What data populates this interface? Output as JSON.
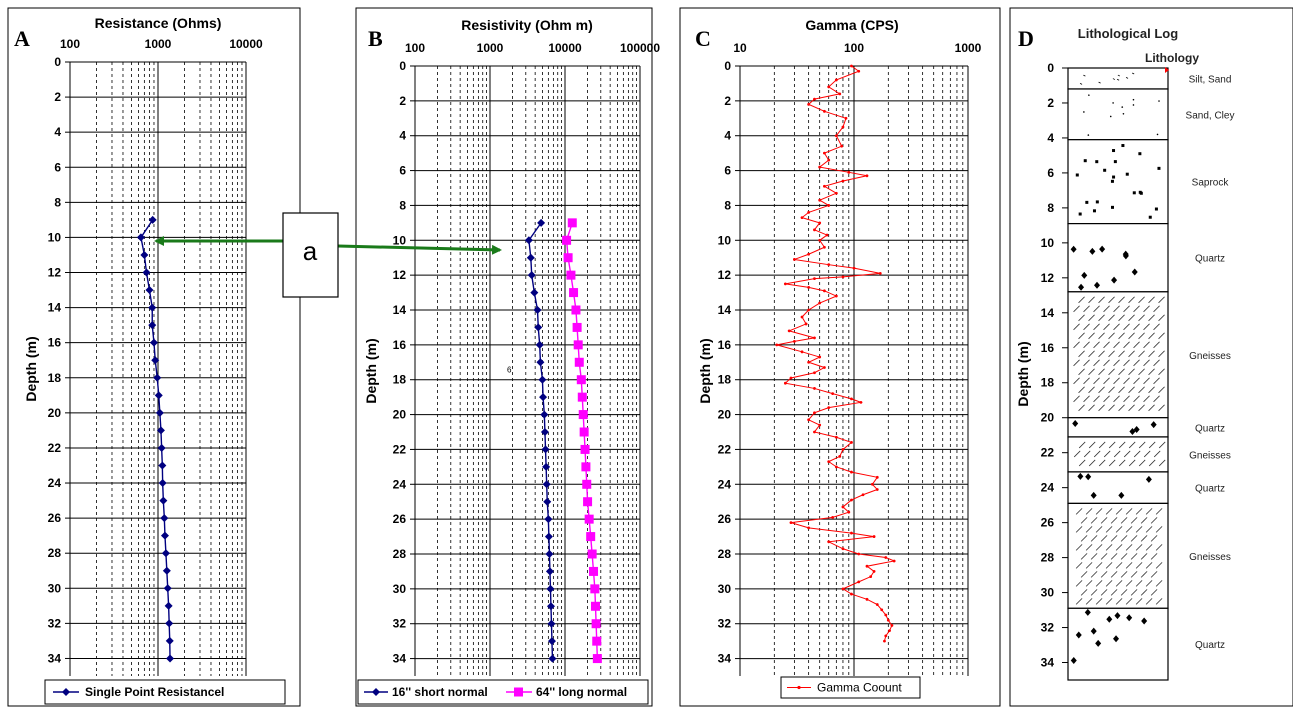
{
  "panels": {
    "A": {
      "letter": "A",
      "title": "Resistance (Ohms)",
      "ylabel": "Depth (m)",
      "x_ticks": [
        "100",
        "1000",
        "10000"
      ],
      "legend": "Single Point Resistancel"
    },
    "B": {
      "letter": "B",
      "title": "Resistivity (Ohm m)",
      "ylabel": "Depth (m)",
      "x_ticks": [
        "100",
        "1000",
        "10000",
        "100000"
      ],
      "legend": [
        "16'' short normal",
        "64'' long normal"
      ],
      "stray_mark": "6"
    },
    "C": {
      "letter": "C",
      "title": "Gamma (CPS)",
      "ylabel": "Depth (m)",
      "x_ticks": [
        "10",
        "100",
        "1000"
      ],
      "legend": "Gamma Coount"
    },
    "D": {
      "letter": "D",
      "title": "Lithological Log",
      "subtitle": "Lithology",
      "ylabel": "Depth (m)"
    }
  },
  "callout": {
    "label": "a"
  },
  "colors": {
    "axis": "#000000",
    "series_short": "#000080",
    "series_long": "#ff00ff",
    "series_gamma": "#ff0000",
    "arrow": "#1a7a1a"
  },
  "chart_data": [
    {
      "type": "line",
      "panel": "A",
      "title": "Resistance (Ohms)",
      "xlabel": "",
      "ylabel": "Depth (m)",
      "x_scale": "log",
      "xlim": [
        100,
        10000
      ],
      "ylim": [
        0,
        35
      ],
      "y_inverted": true,
      "y_ticks": [
        0,
        2,
        4,
        6,
        8,
        10,
        12,
        14,
        16,
        18,
        20,
        22,
        24,
        26,
        28,
        30,
        32,
        34
      ],
      "legend_position": "bottom",
      "series": [
        {
          "name": "Single Point Resistancel",
          "marker": "diamond",
          "points": [
            [
              870,
              9
            ],
            [
              640,
              10
            ],
            [
              700,
              11
            ],
            [
              740,
              12
            ],
            [
              800,
              13
            ],
            [
              860,
              14
            ],
            [
              860,
              15
            ],
            [
              900,
              16
            ],
            [
              930,
              17
            ],
            [
              980,
              18
            ],
            [
              1020,
              19
            ],
            [
              1050,
              20
            ],
            [
              1080,
              21
            ],
            [
              1100,
              22
            ],
            [
              1120,
              23
            ],
            [
              1130,
              24
            ],
            [
              1150,
              25
            ],
            [
              1180,
              26
            ],
            [
              1200,
              27
            ],
            [
              1230,
              28
            ],
            [
              1260,
              29
            ],
            [
              1290,
              30
            ],
            [
              1320,
              31
            ],
            [
              1340,
              32
            ],
            [
              1360,
              33
            ],
            [
              1370,
              34
            ]
          ]
        }
      ]
    },
    {
      "type": "line",
      "panel": "B",
      "title": "Resistivity (Ohm m)",
      "xlabel": "",
      "ylabel": "Depth (m)",
      "x_scale": "log",
      "xlim": [
        100,
        100000
      ],
      "ylim": [
        0,
        35
      ],
      "y_inverted": true,
      "y_ticks": [
        0,
        2,
        4,
        6,
        8,
        10,
        12,
        14,
        16,
        18,
        20,
        22,
        24,
        26,
        28,
        30,
        32,
        34
      ],
      "legend_position": "bottom",
      "series": [
        {
          "name": "16'' short normal",
          "marker": "diamond",
          "points": [
            [
              4800,
              9
            ],
            [
              3300,
              10
            ],
            [
              3500,
              11
            ],
            [
              3600,
              12
            ],
            [
              3900,
              13
            ],
            [
              4300,
              14
            ],
            [
              4400,
              15
            ],
            [
              4600,
              16
            ],
            [
              4700,
              17
            ],
            [
              5000,
              18
            ],
            [
              5100,
              19
            ],
            [
              5300,
              20
            ],
            [
              5400,
              21
            ],
            [
              5500,
              22
            ],
            [
              5600,
              23
            ],
            [
              5700,
              24
            ],
            [
              5800,
              25
            ],
            [
              6000,
              26
            ],
            [
              6100,
              27
            ],
            [
              6200,
              28
            ],
            [
              6300,
              29
            ],
            [
              6400,
              30
            ],
            [
              6500,
              31
            ],
            [
              6600,
              32
            ],
            [
              6700,
              33
            ],
            [
              6800,
              34
            ]
          ]
        },
        {
          "name": "64'' long normal",
          "marker": "square",
          "points": [
            [
              12500,
              9
            ],
            [
              10500,
              10
            ],
            [
              11000,
              11
            ],
            [
              12000,
              12
            ],
            [
              13000,
              13
            ],
            [
              14000,
              14
            ],
            [
              14500,
              15
            ],
            [
              15000,
              16
            ],
            [
              15500,
              17
            ],
            [
              16500,
              18
            ],
            [
              17000,
              19
            ],
            [
              17500,
              20
            ],
            [
              18000,
              21
            ],
            [
              18500,
              22
            ],
            [
              19000,
              23
            ],
            [
              19500,
              24
            ],
            [
              20000,
              25
            ],
            [
              21000,
              26
            ],
            [
              22000,
              27
            ],
            [
              23000,
              28
            ],
            [
              24000,
              29
            ],
            [
              25000,
              30
            ],
            [
              25500,
              31
            ],
            [
              26000,
              32
            ],
            [
              26500,
              33
            ],
            [
              27000,
              34
            ]
          ]
        }
      ]
    },
    {
      "type": "line",
      "panel": "C",
      "title": "Gamma (CPS)",
      "xlabel": "",
      "ylabel": "Depth (m)",
      "x_scale": "log",
      "xlim": [
        10,
        1000
      ],
      "ylim": [
        0,
        35
      ],
      "y_inverted": true,
      "y_ticks": [
        0,
        2,
        4,
        6,
        8,
        10,
        12,
        14,
        16,
        18,
        20,
        22,
        24,
        26,
        28,
        30,
        32,
        34
      ],
      "legend_position": "bottom",
      "series": [
        {
          "name": "Gamma Coount",
          "marker": "dot",
          "points": [
            [
              95,
              0
            ],
            [
              110,
              0.3
            ],
            [
              70,
              0.8
            ],
            [
              60,
              1.2
            ],
            [
              75,
              1.6
            ],
            [
              45,
              1.9
            ],
            [
              40,
              2.2
            ],
            [
              55,
              2.6
            ],
            [
              85,
              3.0
            ],
            [
              80,
              3.5
            ],
            [
              70,
              4.0
            ],
            [
              78,
              4.6
            ],
            [
              55,
              5.0
            ],
            [
              60,
              5.4
            ],
            [
              50,
              5.8
            ],
            [
              90,
              6.1
            ],
            [
              130,
              6.3
            ],
            [
              80,
              6.6
            ],
            [
              55,
              6.9
            ],
            [
              70,
              7.3
            ],
            [
              50,
              7.7
            ],
            [
              60,
              8.0
            ],
            [
              40,
              8.4
            ],
            [
              35,
              8.7
            ],
            [
              50,
              9.0
            ],
            [
              45,
              9.4
            ],
            [
              58,
              9.7
            ],
            [
              50,
              10.0
            ],
            [
              55,
              10.4
            ],
            [
              40,
              10.8
            ],
            [
              30,
              11.1
            ],
            [
              60,
              11.4
            ],
            [
              100,
              11.6
            ],
            [
              170,
              11.9
            ],
            [
              80,
              12.1
            ],
            [
              45,
              12.2
            ],
            [
              25,
              12.5
            ],
            [
              40,
              12.7
            ],
            [
              55,
              12.9
            ],
            [
              70,
              13.2
            ],
            [
              50,
              13.6
            ],
            [
              40,
              14.0
            ],
            [
              35,
              14.4
            ],
            [
              38,
              14.8
            ],
            [
              27,
              15.2
            ],
            [
              45,
              15.6
            ],
            [
              30,
              15.8
            ],
            [
              21,
              16.0
            ],
            [
              35,
              16.4
            ],
            [
              50,
              16.7
            ],
            [
              40,
              17.0
            ],
            [
              55,
              17.3
            ],
            [
              45,
              17.6
            ],
            [
              28,
              17.9
            ],
            [
              25,
              18.2
            ],
            [
              45,
              18.5
            ],
            [
              65,
              18.8
            ],
            [
              95,
              19.1
            ],
            [
              115,
              19.3
            ],
            [
              60,
              19.6
            ],
            [
              45,
              19.9
            ],
            [
              40,
              20.3
            ],
            [
              50,
              20.6
            ],
            [
              45,
              21.0
            ],
            [
              70,
              21.3
            ],
            [
              95,
              21.6
            ],
            [
              80,
              22.0
            ],
            [
              75,
              22.4
            ],
            [
              60,
              22.7
            ],
            [
              70,
              23.0
            ],
            [
              95,
              23.3
            ],
            [
              160,
              23.6
            ],
            [
              145,
              24.0
            ],
            [
              160,
              24.3
            ],
            [
              120,
              24.6
            ],
            [
              95,
              24.9
            ],
            [
              80,
              25.3
            ],
            [
              90,
              25.6
            ],
            [
              65,
              25.9
            ],
            [
              28,
              26.2
            ],
            [
              40,
              26.5
            ],
            [
              95,
              26.8
            ],
            [
              150,
              27.0
            ],
            [
              60,
              27.3
            ],
            [
              80,
              27.7
            ],
            [
              110,
              28.0
            ],
            [
              190,
              28.2
            ],
            [
              225,
              28.4
            ],
            [
              130,
              28.7
            ],
            [
              150,
              29.0
            ],
            [
              140,
              29.3
            ],
            [
              110,
              29.6
            ],
            [
              80,
              30.0
            ],
            [
              95,
              30.3
            ],
            [
              130,
              30.6
            ],
            [
              160,
              30.9
            ],
            [
              175,
              31.2
            ],
            [
              190,
              31.5
            ],
            [
              200,
              31.8
            ],
            [
              215,
              32.1
            ],
            [
              205,
              32.4
            ],
            [
              190,
              32.7
            ],
            [
              185,
              33.0
            ]
          ]
        }
      ]
    },
    {
      "type": "table",
      "panel": "D",
      "title": "Lithological Log",
      "subtitle": "Lithology",
      "ylabel": "Depth (m)",
      "ylim": [
        0,
        35
      ],
      "y_ticks": [
        0,
        2,
        4,
        6,
        8,
        10,
        12,
        14,
        16,
        18,
        20,
        22,
        24,
        26,
        28,
        30,
        32,
        34
      ],
      "layers": [
        {
          "label": "Silt, Sand",
          "top": 0,
          "bottom": 1.2,
          "pattern": "dash"
        },
        {
          "label": "Sand,  Cley",
          "top": 1.2,
          "bottom": 4.1,
          "pattern": "dot"
        },
        {
          "label": "Saprock",
          "top": 4.1,
          "bottom": 8.9,
          "pattern": "square"
        },
        {
          "label": "Quartz",
          "top": 8.9,
          "bottom": 12.8,
          "pattern": "bigdot"
        },
        {
          "label": "Gneisses",
          "top": 12.8,
          "bottom": 20.0,
          "pattern": "hatch"
        },
        {
          "label": "Quartz",
          "top": 20.0,
          "bottom": 21.1,
          "pattern": "bigdot"
        },
        {
          "label": "Gneisses",
          "top": 21.1,
          "bottom": 23.1,
          "pattern": "hatch"
        },
        {
          "label": "Quartz",
          "top": 23.1,
          "bottom": 24.9,
          "pattern": "bigdot"
        },
        {
          "label": "Gneisses",
          "top": 24.9,
          "bottom": 30.9,
          "pattern": "hatch"
        },
        {
          "label": "Quartz",
          "top": 30.9,
          "bottom": 35.0,
          "pattern": "bigdot"
        }
      ]
    }
  ]
}
